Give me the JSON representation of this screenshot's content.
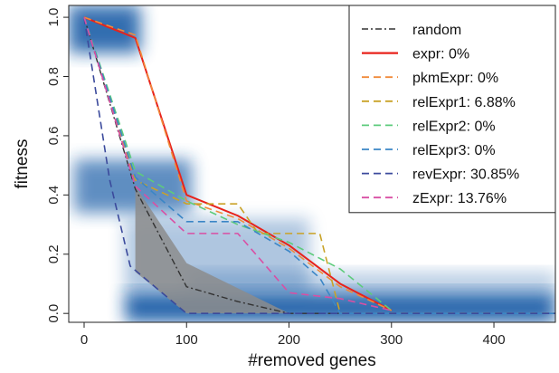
{
  "chart_data": {
    "type": "line",
    "xlabel": "#removed genes",
    "ylabel": "fitness",
    "xlim": [
      -15,
      460
    ],
    "ylim": [
      -0.03,
      1.04
    ],
    "x_ticks": [
      "0",
      "100",
      "200",
      "300",
      "400"
    ],
    "x_tick_values": [
      0,
      100,
      200,
      300,
      400
    ],
    "y_ticks": [
      "0.0",
      "0.2",
      "0.4",
      "0.6",
      "0.8",
      "1.0"
    ],
    "y_tick_values": [
      0.0,
      0.2,
      0.4,
      0.6,
      0.8,
      1.0
    ],
    "grid": false,
    "legend_position": "top-right",
    "background": {
      "type": "density-heatmap",
      "color": "#1a5fa8",
      "regions": [
        {
          "x": [
            -15,
            55
          ],
          "y": [
            0.88,
            1.04
          ],
          "intensity": 0.9
        },
        {
          "x": [
            -10,
            105
          ],
          "y": [
            0.34,
            0.52
          ],
          "intensity": 0.7
        },
        {
          "x": [
            40,
            220
          ],
          "y": [
            0.06,
            0.32
          ],
          "intensity": 0.35
        },
        {
          "x": [
            40,
            460
          ],
          "y": [
            -0.03,
            0.07
          ],
          "intensity": 0.95
        },
        {
          "x": [
            100,
            460
          ],
          "y": [
            0.06,
            0.14
          ],
          "intensity": 0.3
        }
      ]
    },
    "band": {
      "color": "#8c8c8c",
      "upper": [
        [
          50,
          0.43
        ],
        [
          100,
          0.17
        ],
        [
          200,
          0.0
        ]
      ],
      "lower": [
        [
          50,
          0.14
        ],
        [
          100,
          0.0
        ]
      ]
    },
    "series": [
      {
        "name": "random",
        "color": "#333333",
        "dash": "dashdot",
        "width": 1.4,
        "points": [
          [
            0,
            1.0
          ],
          [
            50,
            0.42
          ],
          [
            100,
            0.09
          ],
          [
            150,
            0.04
          ],
          [
            200,
            0.0
          ],
          [
            460,
            0.0
          ]
        ]
      },
      {
        "name": "expr: 0%",
        "color": "#e8221b",
        "dash": "solid",
        "width": 2.0,
        "points": [
          [
            0,
            1.0
          ],
          [
            50,
            0.93
          ],
          [
            100,
            0.4
          ],
          [
            150,
            0.33
          ],
          [
            200,
            0.23
          ],
          [
            250,
            0.1
          ],
          [
            300,
            0.01
          ]
        ]
      },
      {
        "name": "pkmExpr: 0%",
        "color": "#f08a3a",
        "dash": "dashed",
        "width": 1.6,
        "points": [
          [
            0,
            1.0
          ],
          [
            50,
            0.94
          ],
          [
            100,
            0.38
          ],
          [
            150,
            0.32
          ],
          [
            200,
            0.22
          ],
          [
            250,
            0.09
          ],
          [
            300,
            0.01
          ]
        ]
      },
      {
        "name": "relExpr1: 6.88%",
        "color": "#c9a227",
        "dash": "dashed",
        "width": 1.6,
        "points": [
          [
            0,
            1.0
          ],
          [
            50,
            0.45
          ],
          [
            100,
            0.37
          ],
          [
            150,
            0.37
          ],
          [
            170,
            0.27
          ],
          [
            230,
            0.27
          ],
          [
            250,
            0.0
          ],
          [
            460,
            0.0
          ]
        ]
      },
      {
        "name": "relExpr2: 0%",
        "color": "#5ecb7c",
        "dash": "dashed",
        "width": 1.6,
        "points": [
          [
            0,
            1.0
          ],
          [
            50,
            0.48
          ],
          [
            100,
            0.38
          ],
          [
            150,
            0.3
          ],
          [
            200,
            0.24
          ],
          [
            250,
            0.15
          ],
          [
            300,
            0.01
          ]
        ]
      },
      {
        "name": "relExpr3: 0%",
        "color": "#3b86c6",
        "dash": "dashed",
        "width": 1.6,
        "points": [
          [
            0,
            1.0
          ],
          [
            50,
            0.46
          ],
          [
            100,
            0.31
          ],
          [
            150,
            0.31
          ],
          [
            200,
            0.21
          ],
          [
            230,
            0.12
          ],
          [
            250,
            0.0
          ],
          [
            460,
            0.0
          ]
        ]
      },
      {
        "name": "revExpr: 30.85%",
        "color": "#3b4a9c",
        "dash": "dashed",
        "width": 1.6,
        "points": [
          [
            0,
            1.0
          ],
          [
            25,
            0.45
          ],
          [
            45,
            0.16
          ],
          [
            100,
            0.0
          ],
          [
            460,
            0.0
          ]
        ]
      },
      {
        "name": "zExpr: 13.76%",
        "color": "#d94fa4",
        "dash": "dashed",
        "width": 1.6,
        "points": [
          [
            0,
            1.0
          ],
          [
            50,
            0.43
          ],
          [
            100,
            0.27
          ],
          [
            150,
            0.27
          ],
          [
            200,
            0.07
          ],
          [
            250,
            0.05
          ],
          [
            300,
            0.01
          ]
        ]
      }
    ]
  }
}
